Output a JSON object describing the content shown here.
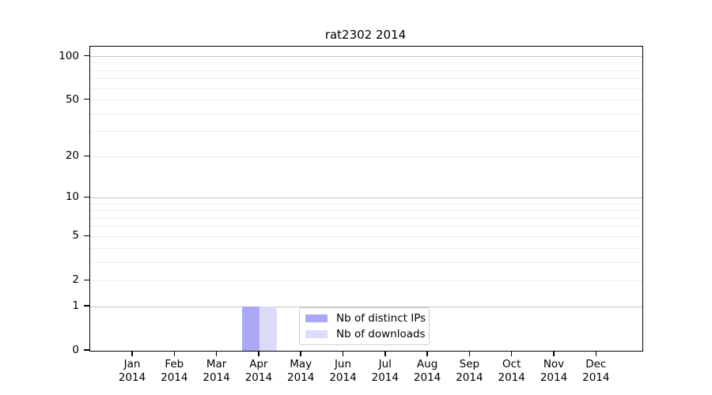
{
  "chart_data": {
    "type": "bar",
    "title": "rat2302 2014",
    "categories": [
      "Jan 2014",
      "Feb 2014",
      "Mar 2014",
      "Apr 2014",
      "May 2014",
      "Jun 2014",
      "Jul 2014",
      "Aug 2014",
      "Sep 2014",
      "Oct 2014",
      "Nov 2014",
      "Dec 2014"
    ],
    "series": [
      {
        "name": "Nb of distinct IPs",
        "color": "#a9a9f5",
        "values": [
          0,
          0,
          0,
          1,
          0,
          0,
          0,
          0,
          0,
          0,
          0,
          0
        ]
      },
      {
        "name": "Nb of downloads",
        "color": "#dcdcfa",
        "values": [
          0,
          0,
          0,
          1,
          0,
          0,
          0,
          0,
          0,
          0,
          0,
          0
        ]
      }
    ],
    "y_ticks": [
      0,
      1,
      2,
      5,
      10,
      20,
      50,
      100
    ],
    "y_major_gridlines": [
      1,
      10,
      100
    ],
    "y_minor_gridlines": [
      2,
      3,
      4,
      5,
      6,
      7,
      8,
      9,
      20,
      30,
      40,
      50,
      60,
      70,
      80,
      90
    ],
    "y_scale": "log1p",
    "ylim": [
      0,
      117
    ],
    "grid": "horizontal",
    "legend_position": "lower-center-inside",
    "colors": {
      "major_grid": "#c6c6c6",
      "minor_grid": "#ececec",
      "axis": "#000000",
      "background": "#ffffff"
    }
  }
}
